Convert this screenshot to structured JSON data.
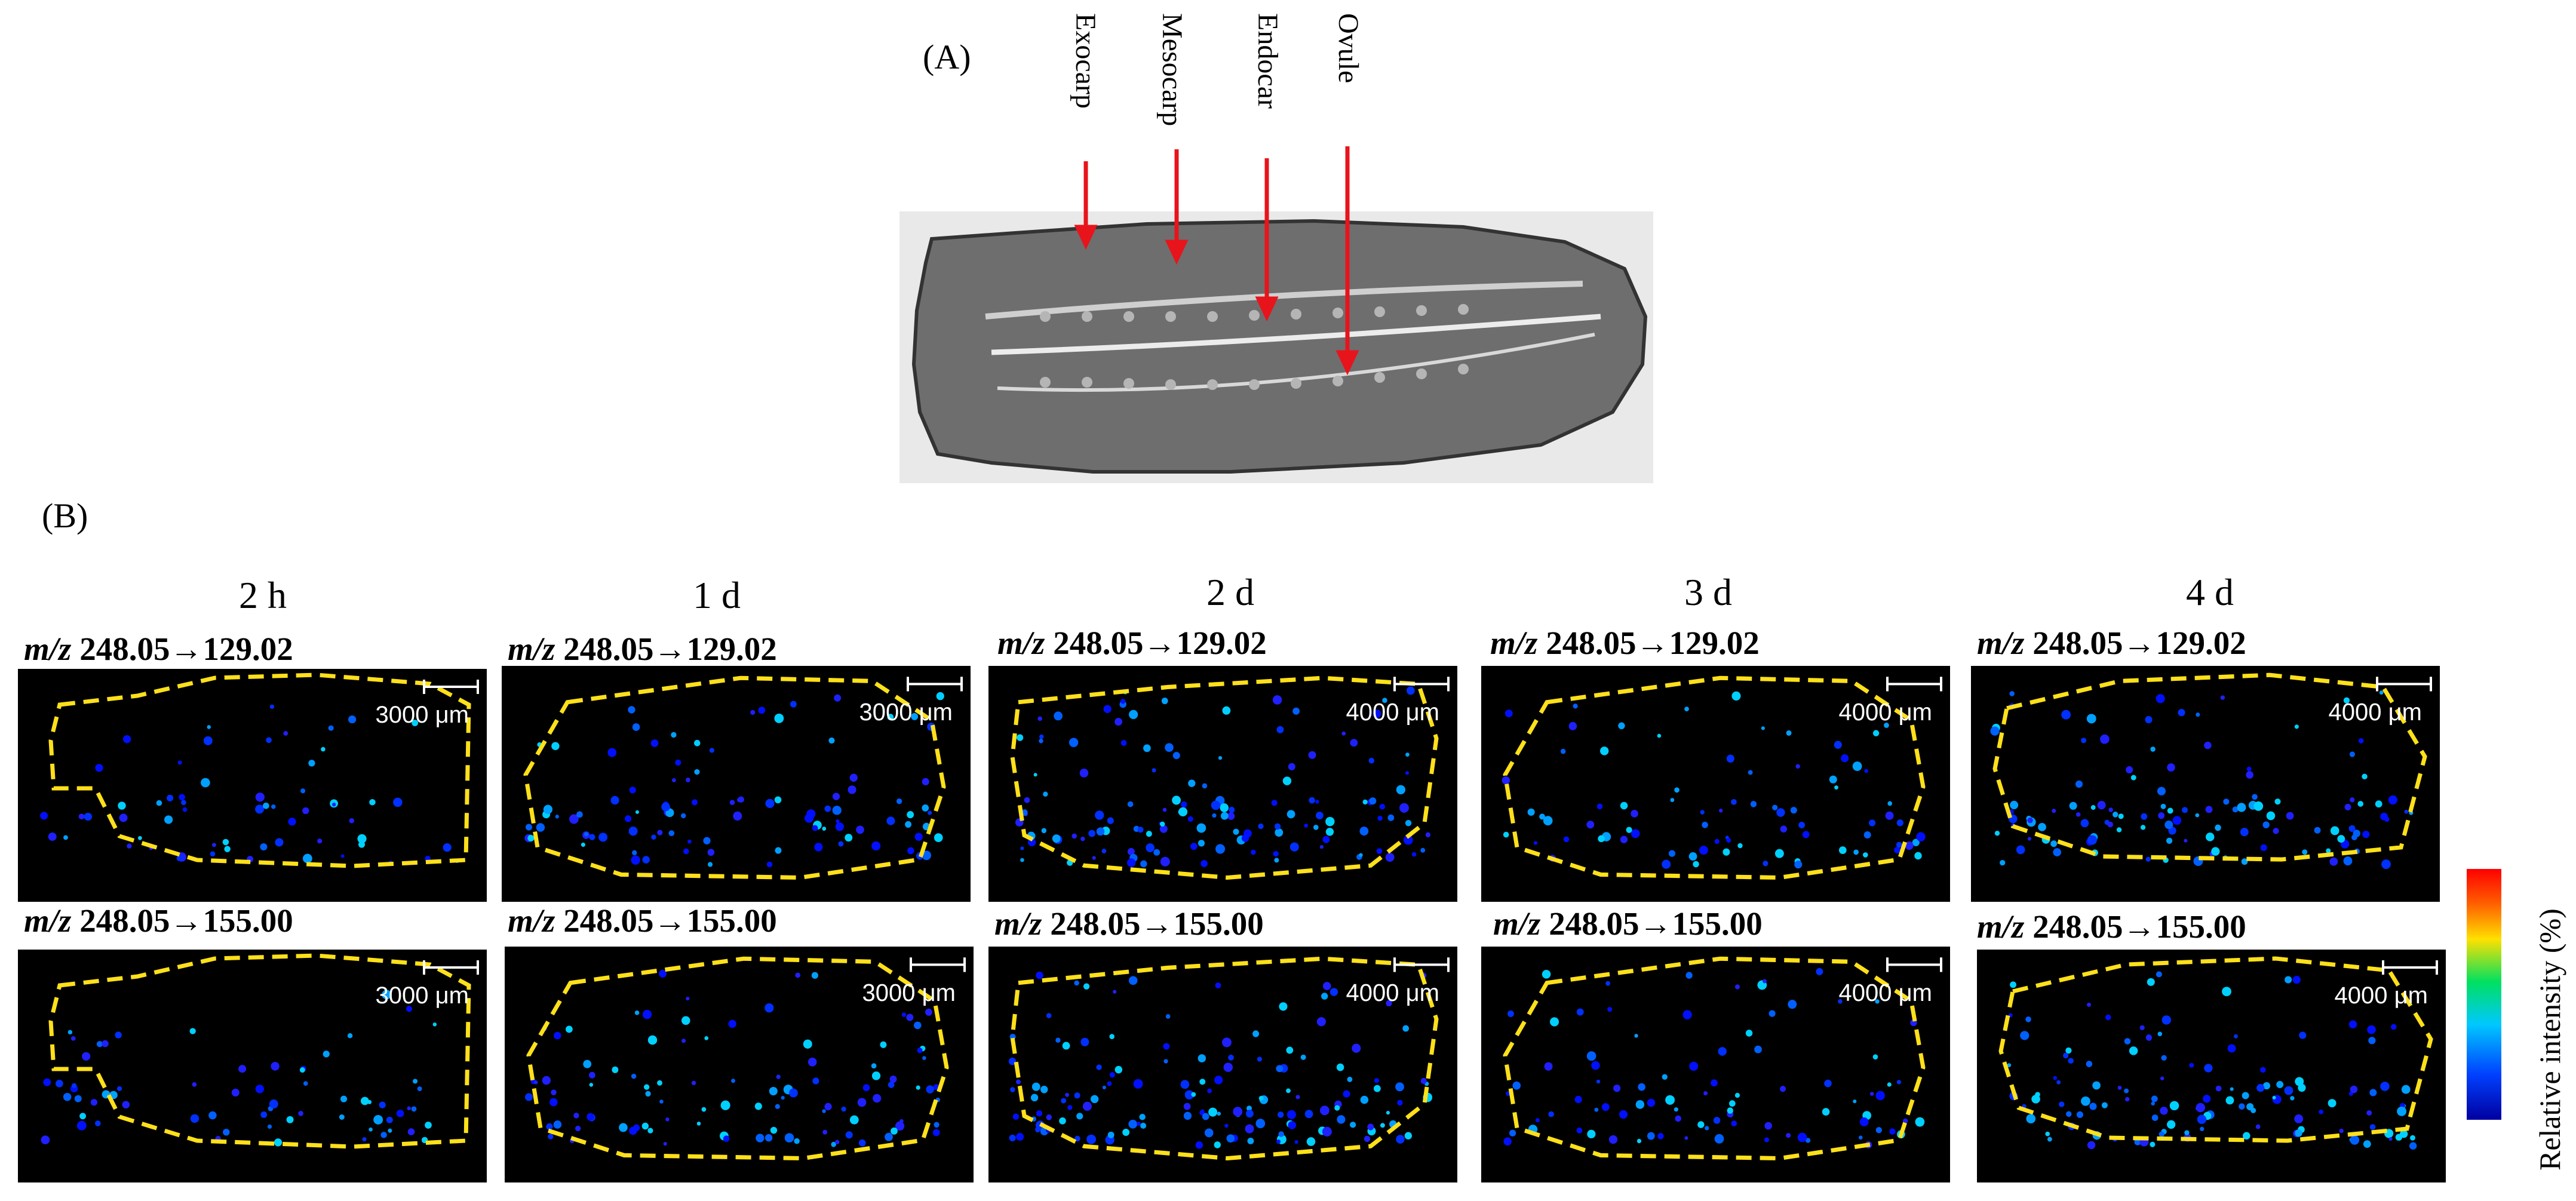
{
  "panel_a": {
    "label": "(A)",
    "tissues": [
      "Exocarp",
      "Mesocarp",
      "Endocar",
      "Ovule"
    ],
    "arrow_color": "#e8141b"
  },
  "panel_b": {
    "label": "(B)",
    "time_points": [
      "2 h",
      "1 d",
      "2 d",
      "3 d",
      "4 d"
    ],
    "scale_bars": [
      "3000 μm",
      "3000 μm",
      "4000 μm",
      "4000 μm",
      "4000 μm"
    ],
    "transitions": [
      {
        "prefix": "m/z",
        "value": "248.05→129.02"
      },
      {
        "prefix": "m/z",
        "value": "248.05→155.00"
      }
    ],
    "outline_color": "#ffe01a",
    "colorbar_label": "Relative intensity (%)"
  }
}
